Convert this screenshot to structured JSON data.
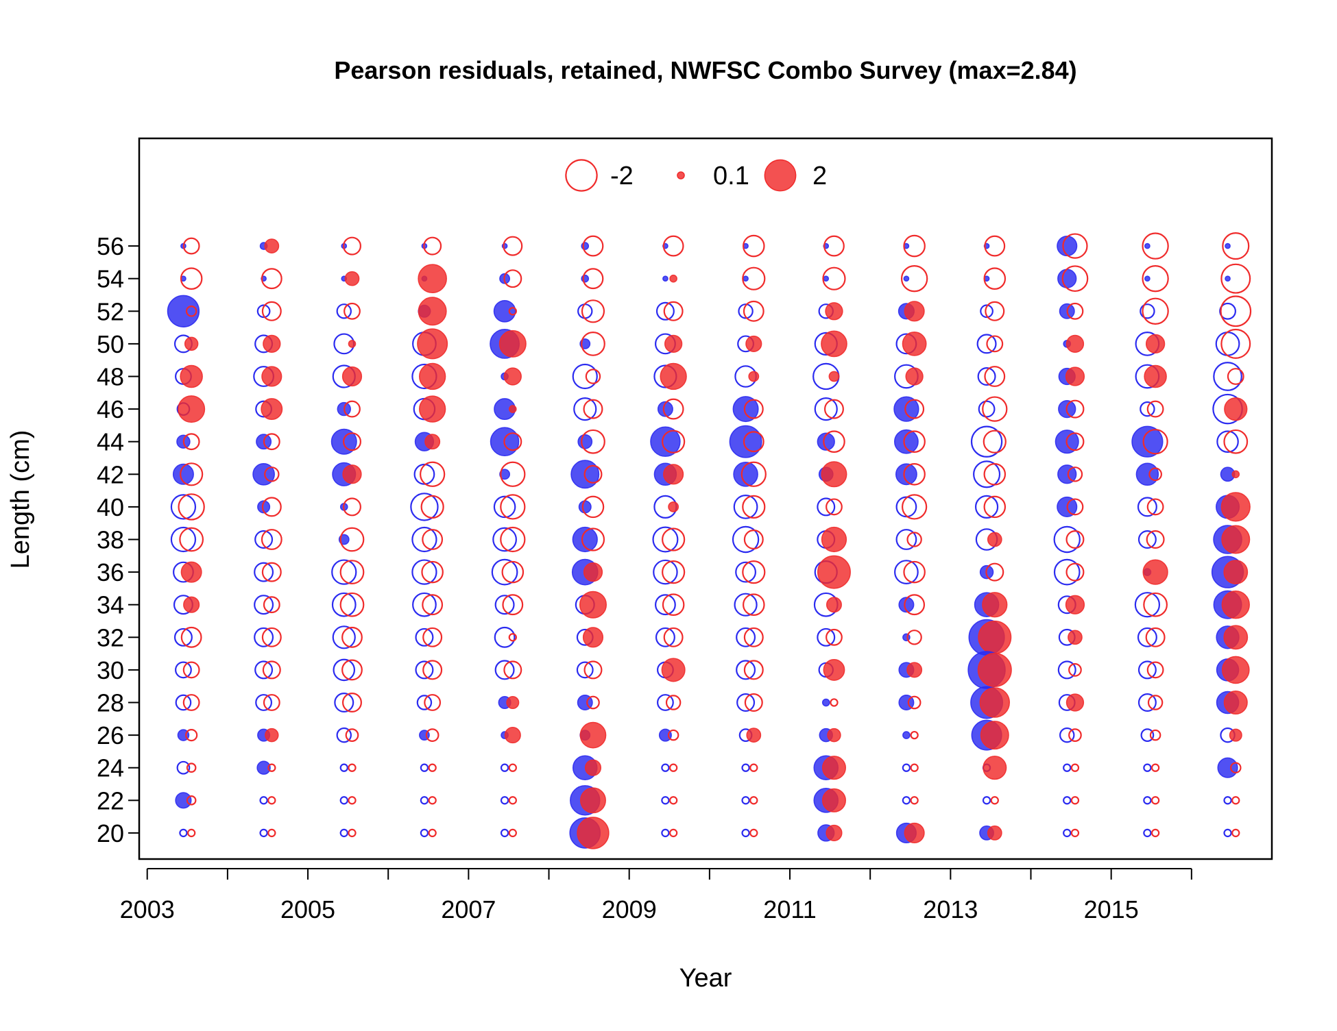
{
  "chart_data": {
    "type": "scatter",
    "title": "Pearson residuals, retained, NWFSC Combo Survey (max=2.84)",
    "xlabel": "Year",
    "ylabel": "Length (cm)",
    "xlim": [
      2002.9,
      2017.0
    ],
    "ylim": [
      18.4,
      62.6
    ],
    "x_ticks": [
      2003,
      2004,
      2005,
      2006,
      2007,
      2008,
      2009,
      2010,
      2011,
      2012,
      2013,
      2014,
      2015,
      2016
    ],
    "x_tick_labels": [
      "2003",
      "2005",
      "2007",
      "2009",
      "2011",
      "2013",
      "2015"
    ],
    "y_ticks": [
      20,
      22,
      24,
      26,
      28,
      30,
      32,
      34,
      36,
      38,
      40,
      42,
      44,
      46,
      48,
      50,
      52,
      54,
      56
    ],
    "grid": false,
    "legend": {
      "placement": "top-center",
      "entries": [
        {
          "label": "-2",
          "value": -2
        },
        {
          "label": "0.1",
          "value": 0.1
        },
        {
          "label": "2",
          "value": 2
        }
      ]
    },
    "colors": {
      "female": "#2b2bf0",
      "male": "#f02b2b"
    },
    "lengths": [
      56,
      54,
      52,
      50,
      48,
      46,
      44,
      42,
      40,
      38,
      36,
      34,
      32,
      30,
      28,
      26,
      24,
      22,
      20
    ],
    "series": [
      {
        "year": 2003,
        "female": [
          0.05,
          0.05,
          2.05,
          -0.6,
          -0.5,
          -0.3,
          0.35,
          0.85,
          -1.2,
          -1.2,
          -0.8,
          -0.7,
          -0.6,
          -0.5,
          -0.45,
          0.25,
          -0.3,
          0.5,
          -0.1
        ],
        "male": [
          -0.5,
          -0.9,
          -0.2,
          0.35,
          1.0,
          1.45,
          -0.5,
          -1.0,
          -1.35,
          -1.1,
          0.85,
          0.5,
          -0.8,
          -0.5,
          -0.5,
          -0.25,
          -0.15,
          -0.15,
          -0.1
        ]
      },
      {
        "year": 2004,
        "female": [
          0.1,
          0.05,
          -0.3,
          -0.6,
          -0.8,
          -0.5,
          0.45,
          0.95,
          0.3,
          -0.6,
          -0.7,
          -0.7,
          -0.7,
          -0.6,
          -0.5,
          0.3,
          0.35,
          -0.1,
          -0.1
        ],
        "male": [
          0.4,
          -0.8,
          -0.7,
          0.6,
          0.8,
          0.9,
          -0.5,
          -0.4,
          -0.7,
          -0.8,
          -0.7,
          -0.5,
          -0.7,
          -0.6,
          -0.5,
          0.35,
          -0.1,
          -0.1,
          -0.1
        ]
      },
      {
        "year": 2005,
        "female": [
          0.05,
          0.05,
          -0.4,
          -0.8,
          -1.0,
          0.35,
          1.3,
          1.1,
          0.1,
          0.2,
          -1.2,
          -1.1,
          -1.0,
          -0.9,
          -0.7,
          -0.4,
          -0.1,
          -0.1,
          -0.1
        ],
        "male": [
          -0.6,
          0.4,
          -0.5,
          0.1,
          0.75,
          -0.5,
          -0.6,
          0.7,
          -0.6,
          -1.1,
          -1.1,
          -1.1,
          -0.8,
          -0.8,
          -0.7,
          -0.3,
          -0.1,
          -0.1,
          -0.1
        ]
      },
      {
        "year": 2006,
        "female": [
          0.05,
          0.05,
          0.3,
          -1.1,
          -1.2,
          -0.9,
          0.7,
          -0.8,
          -1.5,
          -1.2,
          -1.2,
          -1.1,
          -0.6,
          -0.6,
          -0.4,
          0.2,
          -0.1,
          -0.1,
          -0.1
        ],
        "male": [
          -0.6,
          1.65,
          1.6,
          1.85,
          1.4,
          1.4,
          0.45,
          -1.2,
          -1.0,
          -0.8,
          -0.9,
          -0.8,
          -0.7,
          -0.7,
          -0.5,
          -0.3,
          -0.1,
          -0.1,
          -0.1
        ]
      },
      {
        "year": 2007,
        "female": [
          0.05,
          0.2,
          0.95,
          1.75,
          0.1,
          0.9,
          1.65,
          0.2,
          -0.9,
          -1.1,
          -1.3,
          -0.7,
          -0.8,
          -0.7,
          0.3,
          0.1,
          -0.1,
          -0.1,
          -0.1
        ],
        "male": [
          -0.7,
          -0.6,
          -0.1,
          1.45,
          0.6,
          0.1,
          -0.6,
          -1.2,
          -1.2,
          -1.2,
          -0.9,
          -0.8,
          -0.1,
          -0.6,
          0.3,
          0.5,
          -0.1,
          -0.1,
          -0.1
        ]
      },
      {
        "year": 2008,
        "female": [
          0.1,
          0.1,
          -0.4,
          0.2,
          -1.2,
          -1.0,
          0.4,
          1.6,
          0.3,
          1.25,
          1.35,
          -0.7,
          -0.5,
          -0.5,
          0.45,
          0.2,
          1.2,
          1.8,
          1.9
        ],
        "male": [
          -0.8,
          -0.8,
          -1.0,
          -1.1,
          -0.4,
          -0.7,
          -1.1,
          -0.6,
          -0.9,
          -1.0,
          0.7,
          1.45,
          0.8,
          -0.6,
          -0.3,
          1.35,
          0.5,
          1.3,
          2.05
        ]
      },
      {
        "year": 2009,
        "female": [
          0.05,
          0.05,
          -0.6,
          -0.8,
          -1.0,
          0.45,
          1.8,
          1.0,
          -1.0,
          -1.25,
          -1.15,
          -0.8,
          -0.7,
          -0.5,
          -0.5,
          0.3,
          -0.1,
          -0.1,
          -0.1
        ],
        "male": [
          -0.8,
          0.1,
          -0.7,
          0.6,
          1.4,
          -0.8,
          -1.0,
          0.8,
          0.2,
          -1.0,
          -1.0,
          -0.9,
          -0.7,
          1.1,
          -0.4,
          -0.2,
          -0.1,
          -0.1,
          -0.1
        ]
      },
      {
        "year": 2010,
        "female": [
          0.05,
          0.05,
          -0.4,
          -0.5,
          -0.9,
          1.3,
          2.1,
          1.2,
          -1.1,
          -1.35,
          -0.8,
          -1.0,
          -0.7,
          -0.7,
          -0.6,
          -0.3,
          -0.1,
          -0.1,
          -0.1
        ],
        "male": [
          -0.9,
          -1.0,
          -0.8,
          0.5,
          0.2,
          -0.7,
          -0.8,
          -1.2,
          -1.0,
          -0.7,
          -1.0,
          -0.9,
          -0.7,
          -0.7,
          -0.6,
          0.4,
          -0.1,
          -0.1,
          -0.1
        ],
        "female_note": "",
        "male_note": ""
      },
      {
        "year": 2011,
        "female": [
          0.05,
          0.05,
          -0.4,
          -1.0,
          -1.35,
          -1.0,
          0.6,
          0.4,
          -0.6,
          -0.6,
          -1.0,
          -1.1,
          -0.6,
          -0.4,
          0.1,
          0.35,
          1.2,
          1.2,
          0.55
        ],
        "male": [
          -0.8,
          -1.0,
          0.6,
          1.35,
          0.2,
          -0.7,
          -0.9,
          1.3,
          -0.5,
          1.25,
          2.2,
          0.45,
          -0.5,
          0.9,
          -0.1,
          0.35,
          1.1,
          1.1,
          0.5
        ]
      },
      {
        "year": 2012,
        "female": [
          0.05,
          0.05,
          0.5,
          -0.8,
          -1.1,
          1.25,
          1.15,
          0.9,
          -0.8,
          -0.8,
          -1.1,
          0.45,
          0.1,
          0.45,
          0.45,
          0.1,
          -0.1,
          -0.1,
          0.8
        ],
        "male": [
          -0.9,
          -1.35,
          0.8,
          1.15,
          0.6,
          -0.7,
          -0.9,
          -0.9,
          -1.2,
          -0.4,
          -0.9,
          -0.8,
          -0.4,
          0.45,
          -0.3,
          -0.1,
          -0.1,
          -0.1,
          0.8
        ]
      },
      {
        "year": 2013,
        "female": [
          0.05,
          0.05,
          -0.3,
          -0.7,
          -0.6,
          -0.5,
          -1.9,
          -1.4,
          -1.0,
          -0.9,
          0.35,
          1.2,
          2.6,
          2.84,
          2.1,
          1.85,
          -0.1,
          -0.1,
          0.4
        ],
        "male": [
          -0.8,
          -0.9,
          -0.7,
          -0.5,
          -0.8,
          -1.2,
          -1.0,
          -0.9,
          -0.9,
          0.4,
          -0.6,
          1.25,
          2.2,
          2.3,
          1.8,
          1.6,
          1.1,
          -0.1,
          0.4
        ]
      },
      {
        "year": 2014,
        "female": [
          0.8,
          0.7,
          0.45,
          0.1,
          0.55,
          0.6,
          1.1,
          0.7,
          0.8,
          -1.35,
          -1.3,
          -0.6,
          -0.5,
          -0.6,
          -0.5,
          -0.4,
          -0.1,
          -0.1,
          -0.1
        ],
        "male": [
          -1.2,
          -1.3,
          -0.5,
          0.6,
          0.7,
          -0.6,
          -0.6,
          -0.4,
          -0.5,
          -0.6,
          -0.6,
          0.7,
          0.4,
          -0.3,
          0.6,
          -0.3,
          -0.1,
          -0.1,
          -0.1
        ]
      },
      {
        "year": 2015,
        "female": [
          0.05,
          0.05,
          -0.4,
          -1.1,
          -1.1,
          -0.4,
          1.95,
          1.0,
          -0.7,
          -0.6,
          0.1,
          -1.2,
          -0.7,
          -0.6,
          -0.6,
          -0.3,
          -0.1,
          -0.1,
          -0.1
        ],
        "male": [
          -1.35,
          -1.35,
          -1.35,
          0.7,
          1.0,
          -0.5,
          -1.2,
          -0.3,
          -0.5,
          -0.6,
          1.25,
          -1.1,
          -0.7,
          -0.5,
          -0.4,
          -0.2,
          -0.1,
          -0.1,
          -0.1
        ]
      },
      {
        "year": 2016,
        "female": [
          0.05,
          0.05,
          -0.5,
          -1.1,
          -1.6,
          -1.75,
          -0.9,
          0.4,
          1.1,
          1.65,
          2.05,
          1.6,
          1.05,
          1.0,
          1.0,
          -0.4,
          0.8,
          -0.1,
          -0.1
        ],
        "male": [
          -1.4,
          -1.7,
          -1.85,
          -1.7,
          -0.5,
          1.05,
          -1.1,
          0.1,
          1.7,
          1.6,
          1.15,
          1.55,
          1.15,
          1.5,
          1.1,
          0.3,
          -0.2,
          -0.1,
          -0.1
        ]
      }
    ]
  }
}
